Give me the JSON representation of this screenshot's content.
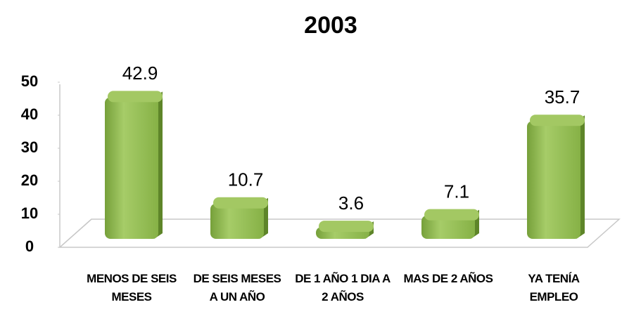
{
  "chart_data": {
    "type": "bar",
    "title": "2003",
    "categories": [
      "MENOS DE SEIS MESES",
      "DE SEIS MESES A UN AÑO",
      "DE 1 AÑO 1 DIA A 2 AÑOS",
      "MAS DE 2 AÑOS",
      "YA TENÍA EMPLEO"
    ],
    "values": [
      42.9,
      10.7,
      3.6,
      7.1,
      35.7
    ],
    "color": "#8db84a",
    "ylim": [
      0,
      50
    ],
    "yticks": [
      0,
      10,
      20,
      30,
      40,
      50
    ],
    "grid": false
  }
}
